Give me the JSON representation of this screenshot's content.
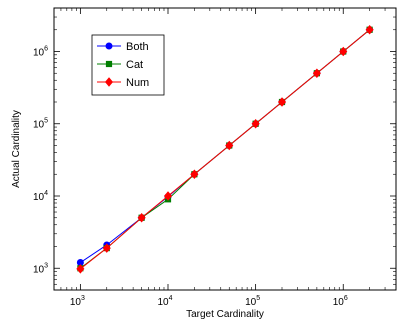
{
  "chart_data": {
    "type": "line",
    "xlabel": "Target Cardinality",
    "ylabel": "Actual Cardinality",
    "xscale": "log",
    "yscale": "log",
    "xlim": [
      500,
      4000000
    ],
    "ylim": [
      500,
      4000000
    ],
    "xticks": [
      {
        "base": "10",
        "exp": "3",
        "value": 1000
      },
      {
        "base": "10",
        "exp": "4",
        "value": 10000
      },
      {
        "base": "10",
        "exp": "5",
        "value": 100000
      },
      {
        "base": "10",
        "exp": "6",
        "value": 1000000
      }
    ],
    "yticks": [
      {
        "base": "10",
        "exp": "3",
        "value": 1000
      },
      {
        "base": "10",
        "exp": "4",
        "value": 10000
      },
      {
        "base": "10",
        "exp": "5",
        "value": 100000
      },
      {
        "base": "10",
        "exp": "6",
        "value": 1000000
      }
    ],
    "grid": false,
    "legend_position": "top-left",
    "x": [
      1000,
      2000,
      5000,
      10000,
      20000,
      50000,
      100000,
      200000,
      500000,
      1000000,
      2000000
    ],
    "series": [
      {
        "name": "Both",
        "color": "#0000ff",
        "marker": "circle",
        "values": [
          1200,
          2100,
          5000,
          9800,
          20000,
          50000,
          100000,
          200000,
          500000,
          1000000,
          2000000
        ]
      },
      {
        "name": "Cat",
        "color": "#007f00",
        "marker": "square",
        "values": [
          1000,
          1900,
          5000,
          9000,
          20000,
          50000,
          100000,
          200000,
          500000,
          1000000,
          2000000
        ]
      },
      {
        "name": "Num",
        "color": "#ff0000",
        "marker": "diamond",
        "values": [
          980,
          1900,
          5000,
          10000,
          20000,
          50000,
          100000,
          200000,
          500000,
          1000000,
          2000000
        ]
      }
    ]
  }
}
